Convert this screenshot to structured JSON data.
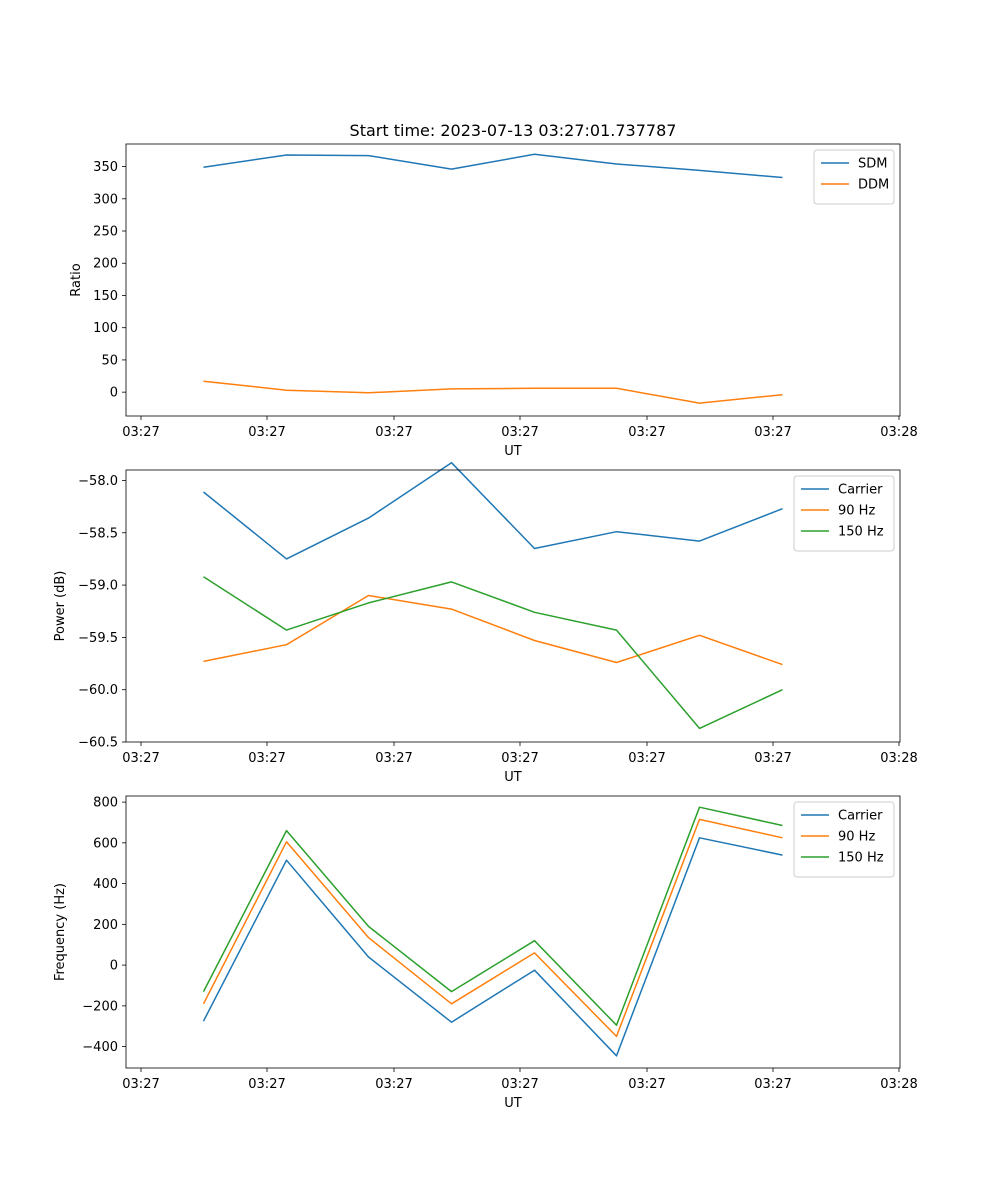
{
  "figure": {
    "title": "Start time: 2023-07-13 03:27:01.737787"
  },
  "chart_data": [
    {
      "type": "line",
      "title": "Start time: 2023-07-13 03:27:01.737787",
      "xlabel": "UT",
      "ylabel": "Ratio",
      "x_tick_labels": [
        "03:27",
        "03:27",
        "03:27",
        "03:27",
        "03:27",
        "03:27",
        "03:28"
      ],
      "y_ticks": [
        0,
        50,
        100,
        150,
        200,
        250,
        300,
        350
      ],
      "ylim": [
        -37,
        385
      ],
      "legend": "top-right",
      "series": [
        {
          "name": "SDM",
          "color": "#1f77b4",
          "values": [
            349,
            368,
            367,
            346,
            369,
            354,
            344,
            333
          ]
        },
        {
          "name": "DDM",
          "color": "#ff7f0e",
          "values": [
            17,
            3,
            -1,
            5,
            6,
            6,
            -17,
            -4
          ]
        }
      ]
    },
    {
      "type": "line",
      "title": "",
      "xlabel": "UT",
      "ylabel": "Power (dB)",
      "x_tick_labels": [
        "03:27",
        "03:27",
        "03:27",
        "03:27",
        "03:27",
        "03:27",
        "03:28"
      ],
      "y_ticks": [
        -60.5,
        -60.0,
        -59.5,
        -59.0,
        -58.5,
        -58.0
      ],
      "y_tick_labels": [
        "−60.5",
        "−60.0",
        "−59.5",
        "−59.0",
        "−58.5",
        "−58.0"
      ],
      "ylim": [
        -60.5,
        -57.9
      ],
      "legend": "top-right",
      "series": [
        {
          "name": "Carrier",
          "color": "#1f77b4",
          "values": [
            -58.11,
            -58.75,
            -58.36,
            -57.83,
            -58.65,
            -58.49,
            -58.58,
            -58.27
          ]
        },
        {
          "name": "90 Hz",
          "color": "#ff7f0e",
          "values": [
            -59.73,
            -59.57,
            -59.1,
            -59.23,
            -59.53,
            -59.74,
            -59.48,
            -59.76
          ]
        },
        {
          "name": "150 Hz",
          "color": "#2ca02c",
          "values": [
            -58.92,
            -59.43,
            -59.17,
            -58.97,
            -59.26,
            -59.43,
            -60.37,
            -60.0
          ]
        }
      ]
    },
    {
      "type": "line",
      "title": "",
      "xlabel": "UT",
      "ylabel": "Frequency (Hz)",
      "x_tick_labels": [
        "03:27",
        "03:27",
        "03:27",
        "03:27",
        "03:27",
        "03:27",
        "03:28"
      ],
      "y_ticks": [
        -400,
        -200,
        0,
        200,
        400,
        600,
        800
      ],
      "y_tick_labels": [
        "−400",
        "−200",
        "0",
        "200",
        "400",
        "600",
        "800"
      ],
      "ylim": [
        -505,
        830
      ],
      "legend": "top-right",
      "series": [
        {
          "name": "Carrier",
          "color": "#1f77b4",
          "values": [
            -275,
            515,
            40,
            -280,
            -25,
            -445,
            625,
            540
          ]
        },
        {
          "name": "90 Hz",
          "color": "#ff7f0e",
          "values": [
            -190,
            605,
            135,
            -190,
            60,
            -350,
            715,
            625
          ]
        },
        {
          "name": "150 Hz",
          "color": "#2ca02c",
          "values": [
            -130,
            660,
            190,
            -130,
            120,
            -295,
            775,
            685
          ]
        }
      ]
    }
  ]
}
